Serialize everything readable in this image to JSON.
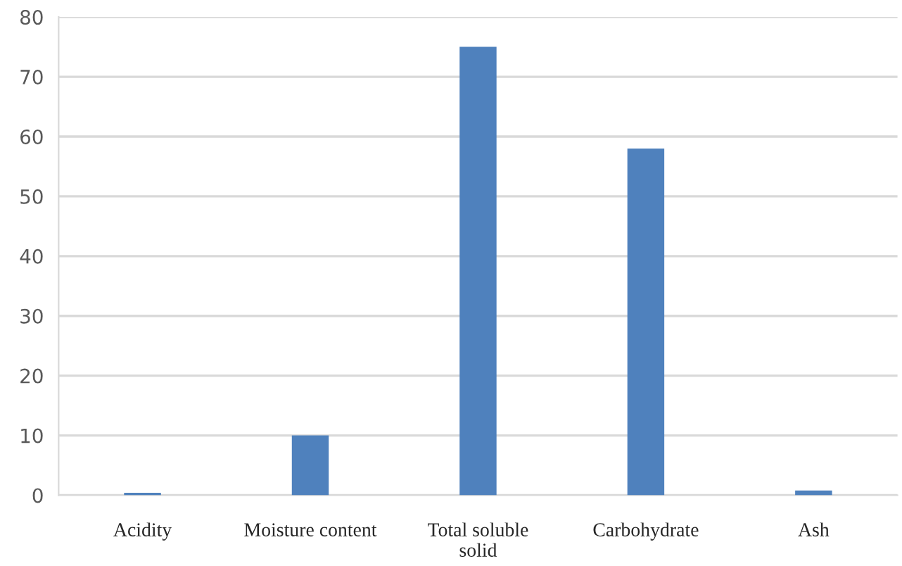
{
  "chart_data": {
    "type": "bar",
    "categories": [
      "Acidity",
      "Moisture content",
      "Total soluble\nsolid",
      "Carbohydrate",
      "Ash"
    ],
    "values": [
      0.4,
      10,
      75,
      58,
      0.8
    ],
    "color": "#4f81bd",
    "ylim": [
      0,
      80
    ],
    "yticks": [
      0,
      10,
      20,
      30,
      40,
      50,
      60,
      70,
      80
    ],
    "grid": "y"
  }
}
